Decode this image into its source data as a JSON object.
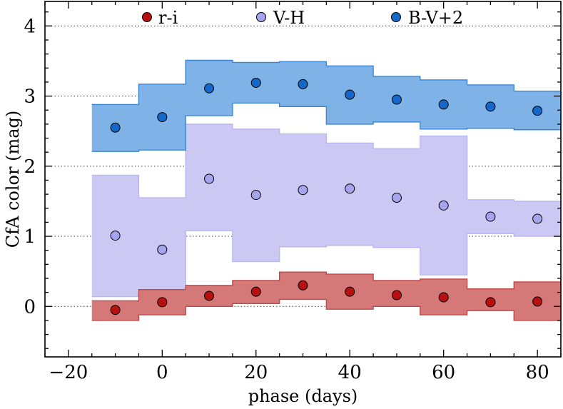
{
  "chart_data": {
    "type": "scatter",
    "xlabel": "phase (days)",
    "ylabel": "CfA color (mag)",
    "xlim": [
      -25,
      85
    ],
    "ylim": [
      -0.72,
      4.35
    ],
    "x_ticks": [
      -20,
      0,
      20,
      40,
      60,
      80
    ],
    "y_ticks": [
      0,
      1,
      2,
      3,
      4
    ],
    "x_tick_labels": [
      "−20",
      "0",
      "20",
      "40",
      "60",
      "80"
    ],
    "y_tick_labels": [
      "0",
      "1",
      "2",
      "3",
      "4"
    ],
    "grid": "horizontal dotted at y ticks",
    "legend_position": "top",
    "series": [
      {
        "name": "r-i",
        "marker_color": "#b80f0f",
        "band_color": "#d47878",
        "band_edge_color": "#c04848",
        "x": [
          -10,
          0,
          10,
          20,
          30,
          40,
          50,
          60,
          70,
          80
        ],
        "values": [
          -0.05,
          0.06,
          0.15,
          0.21,
          0.3,
          0.21,
          0.16,
          0.13,
          0.06,
          0.07
        ],
        "band_lower": [
          -0.2,
          -0.12,
          0.0,
          0.04,
          0.1,
          -0.04,
          0.0,
          -0.12,
          -0.06,
          -0.2
        ],
        "band_upper": [
          0.08,
          0.24,
          0.3,
          0.37,
          0.49,
          0.46,
          0.37,
          0.39,
          0.25,
          0.35
        ]
      },
      {
        "name": "V-H",
        "marker_color": "#a6a4ec",
        "band_color": "#cbc9f4",
        "band_edge_color": "#b8b6ee",
        "x": [
          -10,
          0,
          10,
          20,
          30,
          40,
          50,
          60,
          70,
          80
        ],
        "values": [
          1.01,
          0.81,
          1.82,
          1.59,
          1.66,
          1.68,
          1.55,
          1.44,
          1.28,
          1.25
        ],
        "band_lower": [
          0.14,
          0.16,
          1.08,
          0.64,
          0.85,
          0.87,
          0.84,
          0.45,
          1.04,
          1.0
        ],
        "band_upper": [
          1.87,
          1.55,
          2.6,
          2.53,
          2.46,
          2.33,
          2.25,
          2.43,
          1.52,
          1.5
        ]
      },
      {
        "name": "B-V+2",
        "marker_color": "#1668c8",
        "band_color": "#7fb2e6",
        "band_edge_color": "#3d86d6",
        "x": [
          -10,
          0,
          10,
          20,
          30,
          40,
          50,
          60,
          70,
          80
        ],
        "values": [
          2.55,
          2.7,
          3.11,
          3.19,
          3.17,
          3.02,
          2.95,
          2.88,
          2.85,
          2.79
        ],
        "band_lower": [
          2.21,
          2.23,
          2.72,
          2.9,
          2.85,
          2.6,
          2.63,
          2.53,
          2.54,
          2.52
        ],
        "band_upper": [
          2.88,
          3.17,
          3.51,
          3.48,
          3.49,
          3.43,
          3.28,
          3.23,
          3.16,
          3.07
        ]
      }
    ],
    "draw_order": [
      1,
      0,
      2
    ]
  }
}
